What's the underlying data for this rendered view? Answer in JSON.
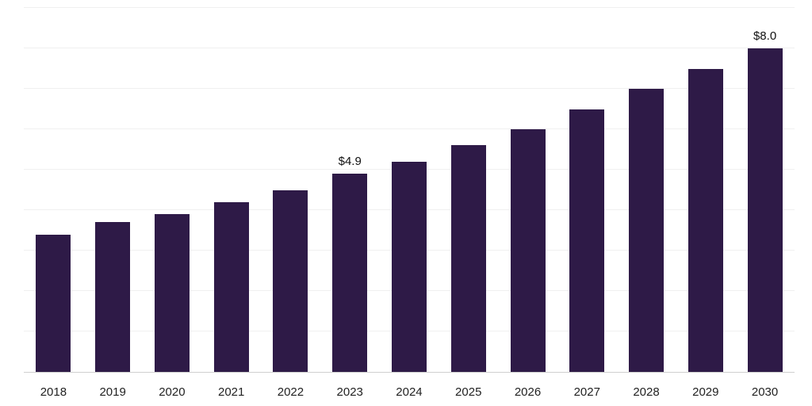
{
  "chart_data": {
    "type": "bar",
    "title": "",
    "xlabel": "",
    "ylabel": "",
    "categories": [
      "2018",
      "2019",
      "2020",
      "2021",
      "2022",
      "2023",
      "2024",
      "2025",
      "2026",
      "2027",
      "2028",
      "2029",
      "2030"
    ],
    "values": [
      3.4,
      3.7,
      3.9,
      4.2,
      4.5,
      4.9,
      5.2,
      5.6,
      6.0,
      6.5,
      7.0,
      7.5,
      8.0
    ],
    "data_labels": {
      "2023": "$4.9",
      "2030": "$8.0"
    },
    "ylim": [
      0,
      9
    ],
    "grid": true,
    "gridline_step": 1,
    "legend": false,
    "bar_color": "#2e1a47",
    "grid_color": "#f0f0f0",
    "axis_color": "#cfcfcf",
    "label_color": "#111111",
    "tick_color": "#222222"
  }
}
